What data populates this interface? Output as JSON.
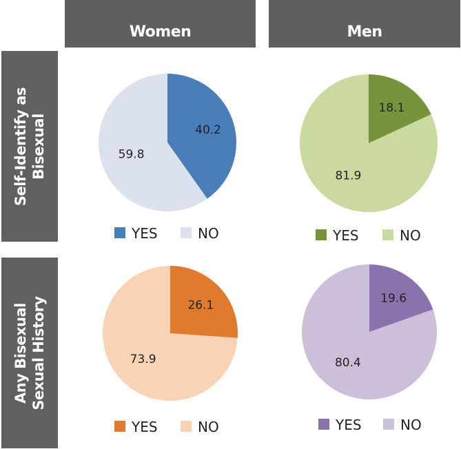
{
  "column_headers": [
    "Women",
    "Men"
  ],
  "row_headers": [
    [
      "Self-Identify as",
      "Bisexual"
    ],
    [
      "Any Bisexual",
      "Sexual History"
    ]
  ],
  "chart_data": [
    {
      "type": "pie",
      "title": "Women - Self-Identify as Bisexual",
      "categories": [
        "YES",
        "NO"
      ],
      "values": [
        40.2,
        59.8
      ],
      "colors": [
        "#4a7ebb",
        "#dbe1ed"
      ],
      "legend": [
        "YES",
        "NO"
      ],
      "legend_position": "bottom"
    },
    {
      "type": "pie",
      "title": "Men - Self-Identify as Bisexual",
      "categories": [
        "YES",
        "NO"
      ],
      "values": [
        18.1,
        81.9
      ],
      "colors": [
        "#77933c",
        "#c9d9a0"
      ],
      "legend": [
        "YES",
        "NO"
      ],
      "legend_position": "bottom"
    },
    {
      "type": "pie",
      "title": "Women - Any Bisexual Sexual History",
      "categories": [
        "YES",
        "NO"
      ],
      "values": [
        26.1,
        73.9
      ],
      "colors": [
        "#e07a2f",
        "#f8d3b5"
      ],
      "legend": [
        "YES",
        "NO"
      ],
      "legend_position": "bottom"
    },
    {
      "type": "pie",
      "title": "Men - Any Bisexual Sexual History",
      "categories": [
        "YES",
        "NO"
      ],
      "values": [
        19.6,
        80.4
      ],
      "colors": [
        "#8c72ad",
        "#cbbfd9"
      ],
      "legend": [
        "YES",
        "NO"
      ],
      "legend_position": "bottom"
    }
  ]
}
